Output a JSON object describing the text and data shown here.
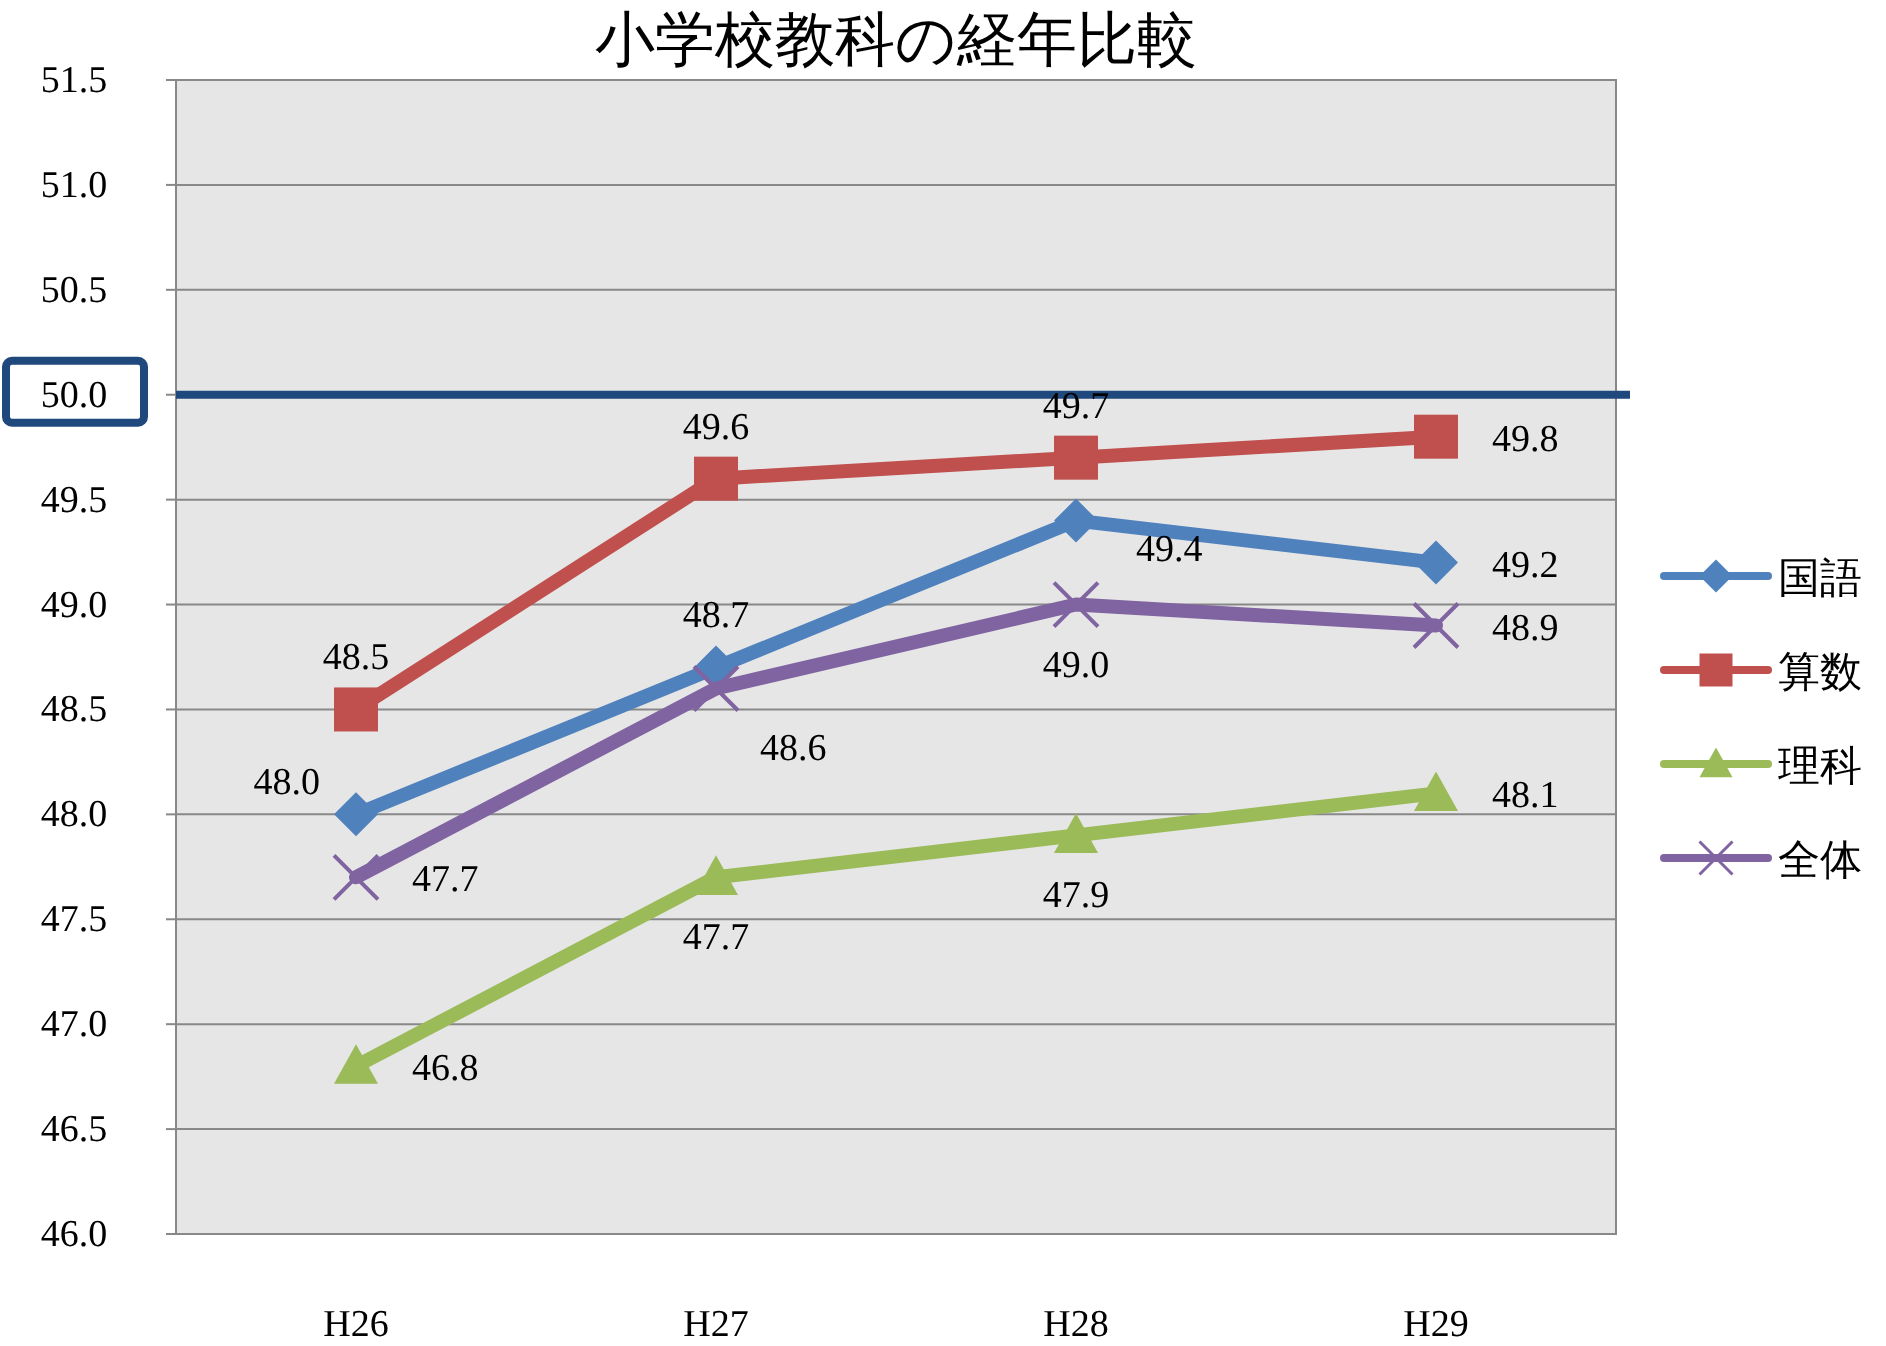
{
  "chart_data": {
    "type": "line",
    "title": "小学校教科の経年比較",
    "categories": [
      "H26",
      "H27",
      "H28",
      "H29"
    ],
    "series": [
      {
        "name": "国語",
        "color": "#4f81bd",
        "marker": "diamond",
        "values": [
          48.0,
          48.7,
          49.4,
          49.2
        ],
        "value_labels": [
          "48.0",
          "48.7",
          "49.4",
          "49.2"
        ]
      },
      {
        "name": "算数",
        "color": "#c0504d",
        "marker": "square",
        "values": [
          48.5,
          49.6,
          49.7,
          49.8
        ],
        "value_labels": [
          "48.5",
          "49.6",
          "49.7",
          "49.8"
        ]
      },
      {
        "name": "理科",
        "color": "#9bbb59",
        "marker": "triangle",
        "values": [
          46.8,
          47.7,
          47.9,
          48.1
        ],
        "value_labels": [
          "46.8",
          "47.7",
          "47.9",
          "48.1"
        ]
      },
      {
        "name": "全体",
        "color": "#8064a2",
        "marker": "cross",
        "values": [
          47.7,
          48.6,
          49.0,
          48.9
        ],
        "value_labels": [
          "47.7",
          "48.6",
          "49.0",
          "48.9"
        ]
      }
    ],
    "ylim": [
      46.0,
      51.5
    ],
    "yticks": [
      {
        "value": 46.0,
        "label": "46.0"
      },
      {
        "value": 46.5,
        "label": "46.5"
      },
      {
        "value": 47.0,
        "label": "47.0"
      },
      {
        "value": 47.5,
        "label": "47.5"
      },
      {
        "value": 48.0,
        "label": "48.0"
      },
      {
        "value": 48.5,
        "label": "48.5"
      },
      {
        "value": 49.0,
        "label": "49.0"
      },
      {
        "value": 49.5,
        "label": "49.5"
      },
      {
        "value": 50.0,
        "label": "50.0"
      },
      {
        "value": 50.5,
        "label": "50.5"
      },
      {
        "value": 51.0,
        "label": "51.0"
      },
      {
        "value": 51.5,
        "label": "51.5"
      }
    ],
    "ref_lines": [
      {
        "axis": "y",
        "value": 50.0,
        "color": "#1f497d"
      }
    ],
    "grid": "y",
    "legend": "right"
  }
}
